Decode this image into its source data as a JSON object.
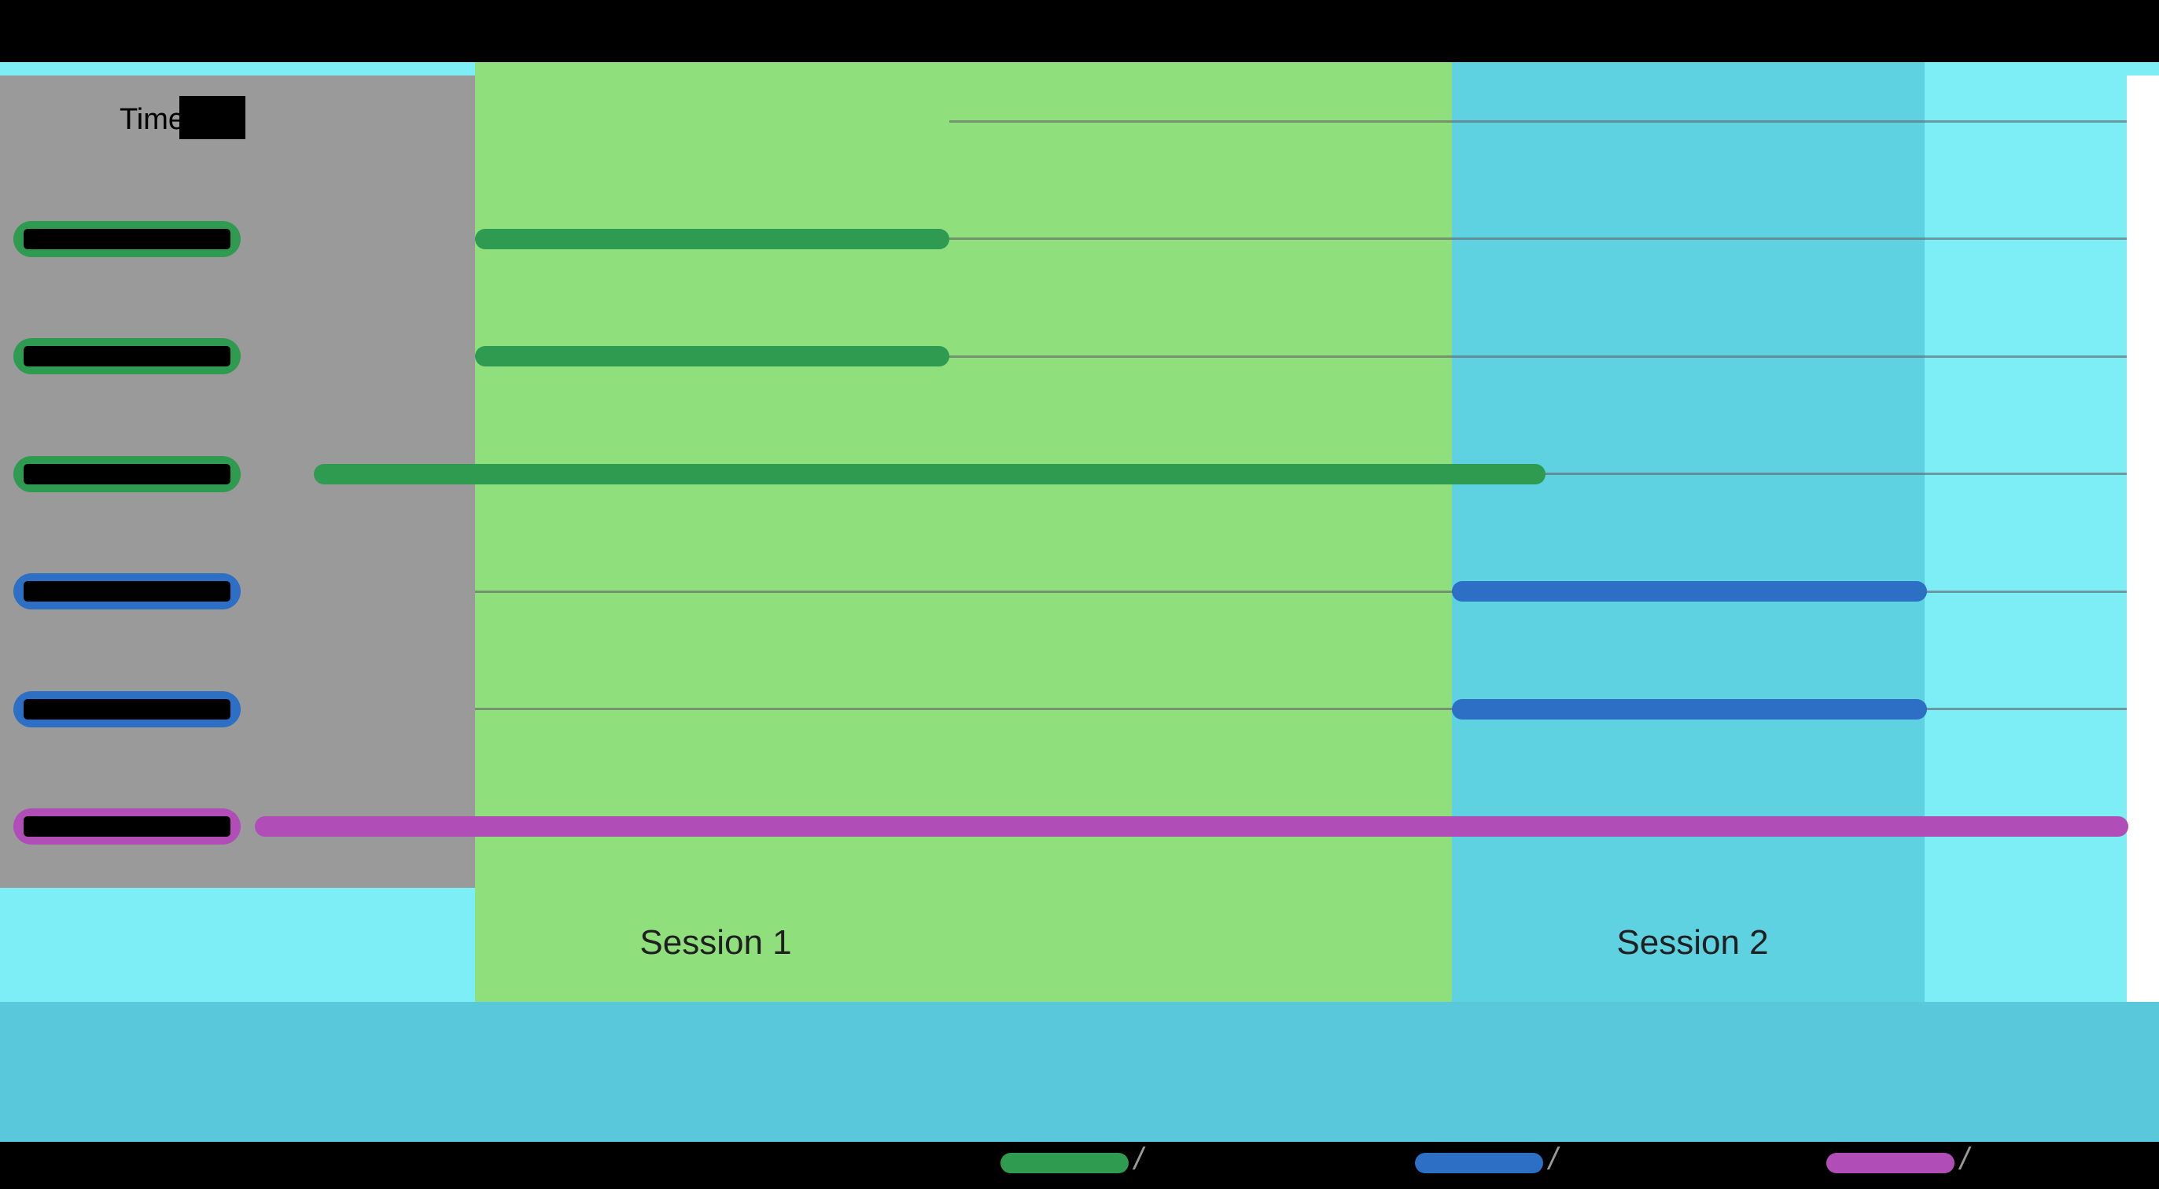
{
  "header": {
    "time_label": "Time"
  },
  "sessions": [
    {
      "label": "Session 1"
    },
    {
      "label": "Session 2"
    }
  ],
  "colors": {
    "background": "#000000",
    "top_strip": "#7deef6",
    "band_gray": "#9a9a9a",
    "band_green": "#8fdf7d",
    "band_cyan": "#5fd2e2",
    "band_lightcyan": "#7deef6",
    "band_bottom": "#58c8da",
    "right_margin": "#ffffff",
    "gridline": "rgba(100,95,105,0.6)",
    "bar_green": "#2e9b51",
    "bar_blue": "#2d6fc4",
    "bar_purple": "#b04db6",
    "redaction": "#000000",
    "session_label_text": "#1f1f1f",
    "legend_slash": "#9a9a9a"
  },
  "chart_data": {
    "type": "bar",
    "subtype": "gantt-timeline",
    "title": "",
    "xlabel": "Time",
    "ylabel": "",
    "x_tick_labels_visible": false,
    "n_rows": 6,
    "bands": [
      {
        "name": "pre-session",
        "color_key": "band_gray",
        "start_pct": 0,
        "end_pct": 22.0,
        "label": ""
      },
      {
        "name": "session-1",
        "color_key": "band_green",
        "start_pct": 22.0,
        "end_pct": 67.25,
        "label": "Session 1"
      },
      {
        "name": "session-2",
        "color_key": "band_cyan",
        "start_pct": 67.25,
        "end_pct": 89.14,
        "label": "Session 2"
      },
      {
        "name": "post-session",
        "color_key": "band_lightcyan",
        "start_pct": 89.14,
        "end_pct": 98.51,
        "label": ""
      }
    ],
    "gridlines": [
      {
        "start_pct": 43.97,
        "end_pct": 98.51
      },
      {
        "start_pct": 22.0,
        "end_pct": 98.51
      },
      {
        "start_pct": 22.0,
        "end_pct": 98.51
      },
      {
        "start_pct": 22.0,
        "end_pct": 98.51
      },
      {
        "start_pct": 22.0,
        "end_pct": 98.51
      },
      {
        "start_pct": 22.0,
        "end_pct": 98.51
      },
      {
        "start_pct": 22.0,
        "end_pct": 98.51
      }
    ],
    "rows": [
      {
        "label": "",
        "label_obscured": true,
        "group": "session1",
        "color_key": "bar_green",
        "start_pct": 22.0,
        "end_pct": 43.97
      },
      {
        "label": "",
        "label_obscured": true,
        "group": "session1",
        "color_key": "bar_green",
        "start_pct": 22.0,
        "end_pct": 43.97
      },
      {
        "label": "",
        "label_obscured": true,
        "group": "session1",
        "color_key": "bar_green",
        "start_pct": 14.54,
        "end_pct": 71.58
      },
      {
        "label": "",
        "label_obscured": true,
        "group": "session2",
        "color_key": "bar_blue",
        "start_pct": 67.25,
        "end_pct": 89.25
      },
      {
        "label": "",
        "label_obscured": true,
        "group": "session2",
        "color_key": "bar_blue",
        "start_pct": 67.25,
        "end_pct": 89.25
      },
      {
        "label": "",
        "label_obscured": true,
        "group": "continuous",
        "color_key": "bar_purple",
        "start_pct": 11.8,
        "end_pct": 98.58
      }
    ],
    "legend": [
      {
        "label": "",
        "label_obscured": true,
        "color_key": "bar_green",
        "trailing_mark": "/"
      },
      {
        "label": "",
        "label_obscured": true,
        "color_key": "bar_blue",
        "trailing_mark": "/"
      },
      {
        "label": "",
        "label_obscured": true,
        "color_key": "bar_purple",
        "trailing_mark": "/"
      }
    ],
    "legend_position": "bottom"
  }
}
